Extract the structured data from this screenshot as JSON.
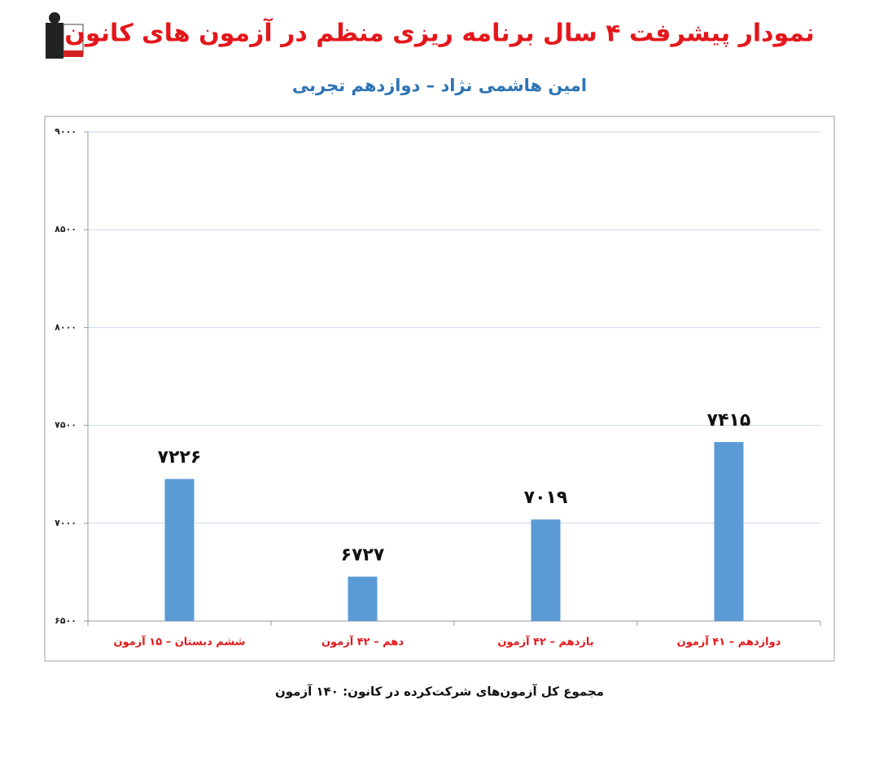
{
  "chart_data": {
    "type": "bar",
    "title": "نمودار پیشرفت ۴ سال برنامه ریزی منظم در آزمون های کانون",
    "subtitle": "امین هاشمی نژاد – دوازدهم تجربی",
    "footnote": "مجموع کل آزمون‌های شرکت‌کرده در کانون: ۱۴۰ آزمون",
    "categories": [
      "ششم دبستان – ۱۵ آزمون",
      "دهم – ۴۲ آزمون",
      "یازدهم – ۴۲ آزمون",
      "دوازدهم – ۴۱ آزمون"
    ],
    "values": [
      7226,
      6727,
      7019,
      7415
    ],
    "value_labels": [
      "۷۲۲۶",
      "۶۷۲۷",
      "۷۰۱۹",
      "۷۴۱۵"
    ],
    "color": "#5b9bd5",
    "ylim": [
      6500,
      9000
    ],
    "yticks": [
      {
        "value": 6500,
        "label": "۶۵۰۰"
      },
      {
        "value": 7000,
        "label": "۷۰۰۰"
      },
      {
        "value": 7500,
        "label": "۷۵۰۰"
      },
      {
        "value": 8000,
        "label": "۸۰۰۰"
      },
      {
        "value": 8500,
        "label": "۸۵۰۰"
      },
      {
        "value": 9000,
        "label": "۹۰۰۰"
      }
    ],
    "grid": true
  }
}
